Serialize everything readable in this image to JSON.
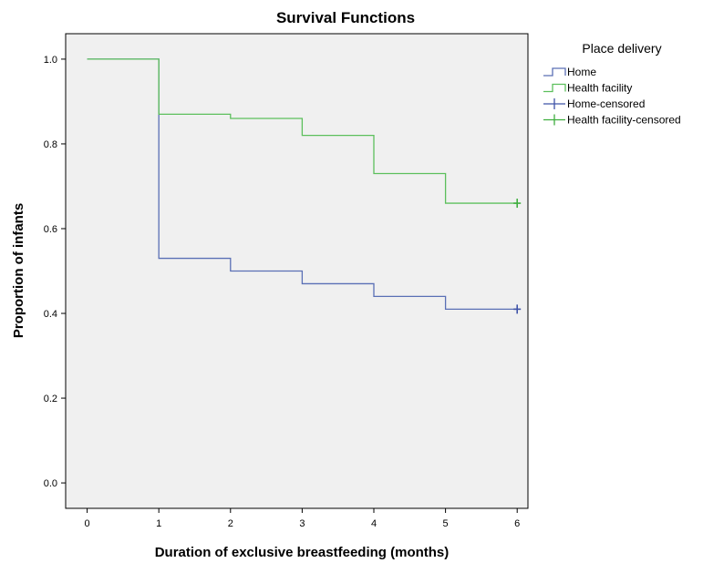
{
  "chart_data": {
    "type": "line",
    "step": true,
    "title": "Survival Functions",
    "xlabel": "Duration of exclusive breastfeeding (months)",
    "ylabel": "Proportion of infants",
    "xlim": [
      -0.3,
      6.15
    ],
    "ylim": [
      -0.06,
      1.06
    ],
    "xticks": [
      0,
      1,
      2,
      3,
      4,
      5,
      6
    ],
    "yticks": [
      0.0,
      0.2,
      0.4,
      0.6,
      0.8,
      1.0
    ],
    "xtick_labels": [
      "0",
      "1",
      "2",
      "3",
      "4",
      "5",
      "6"
    ],
    "ytick_labels": [
      "0.0",
      "0.2",
      "0.4",
      "0.6",
      "0.8",
      "1.0"
    ],
    "grid": false,
    "plot_background": "#f0f0f0",
    "legend_title": "Place delivery",
    "legend_position": "right",
    "series": [
      {
        "name": "Home",
        "color": "#5a6fb5",
        "x": [
          0,
          1,
          2,
          3,
          4,
          5,
          6
        ],
        "y": [
          1.0,
          0.53,
          0.5,
          0.47,
          0.44,
          0.41,
          0.41
        ]
      },
      {
        "name": "Health facility",
        "color": "#5cbf5c",
        "x": [
          0,
          1,
          2,
          3,
          4,
          5,
          6
        ],
        "y": [
          1.0,
          0.87,
          0.86,
          0.82,
          0.73,
          0.66,
          0.66
        ]
      }
    ],
    "censored": [
      {
        "name": "Home-censored",
        "color": "#3f53a8",
        "x": [
          6
        ],
        "y": [
          0.41
        ]
      },
      {
        "name": "Health facility-censored",
        "color": "#3fae3f",
        "x": [
          6
        ],
        "y": [
          0.66
        ]
      }
    ]
  }
}
